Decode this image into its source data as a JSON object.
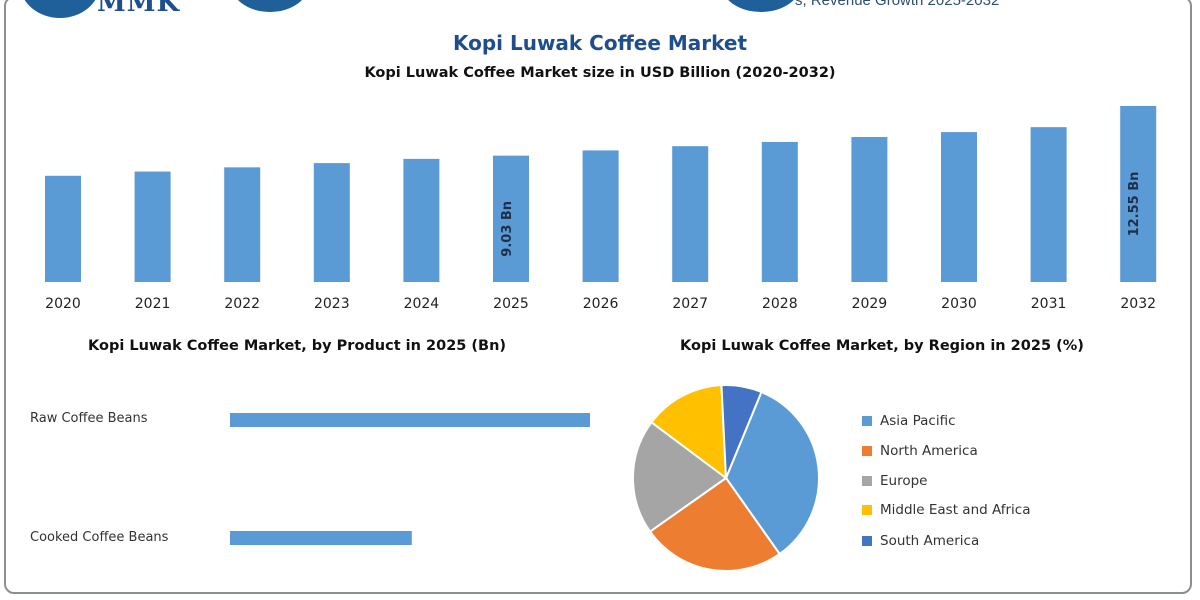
{
  "header": {
    "logo_text": "MMK",
    "top_text_crop": "s, Revenue Growth 2025-2032"
  },
  "title": "Kopi Luwak Coffee Market",
  "subtitle": "Kopi Luwak Coffee Market size in USD Billion (2020-2032)",
  "colors": {
    "bar_blue": "#5b9bd5",
    "title_blue": "#1f4e8c",
    "asia_pacific": "#5b9bd5",
    "north_america": "#ed7d31",
    "europe": "#a5a5a5",
    "middle_east_africa": "#ffc000",
    "south_america": "#4472c4"
  },
  "product_section": {
    "title": "Kopi Luwak Coffee Market, by Product in 2025 (Bn)"
  },
  "region_section": {
    "title": "Kopi Luwak Coffee Market, by Region in 2025 (%)"
  },
  "chart_data": [
    {
      "type": "bar",
      "orientation": "vertical",
      "title": "Kopi Luwak Coffee Market size in USD Billion (2020-2032)",
      "categories": [
        "2020",
        "2021",
        "2022",
        "2023",
        "2024",
        "2025",
        "2026",
        "2027",
        "2028",
        "2029",
        "2030",
        "2031",
        "2032"
      ],
      "values": [
        7.6,
        7.9,
        8.2,
        8.5,
        8.8,
        9.03,
        9.4,
        9.7,
        10.0,
        10.35,
        10.7,
        11.05,
        12.55
      ],
      "data_labels": {
        "5": "9.03 Bn",
        "12": "12.55 Bn"
      },
      "grid": false
    },
    {
      "type": "bar",
      "orientation": "horizontal",
      "title": "Kopi Luwak Coffee Market, by Product in 2025 (Bn)",
      "categories": [
        "Raw Coffee Beans",
        "Cooked Coffee Beans"
      ],
      "values": [
        6.0,
        3.03
      ],
      "grid": false
    },
    {
      "type": "pie",
      "title": "Kopi Luwak Coffee Market, by Region in 2025 (%)",
      "categories": [
        "Asia Pacific",
        "North America",
        "Europe",
        "Middle East and Africa",
        "South America"
      ],
      "values": [
        34,
        25,
        20,
        14,
        7
      ],
      "legend": "right"
    }
  ]
}
